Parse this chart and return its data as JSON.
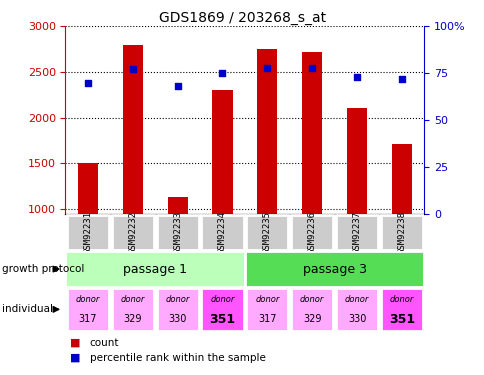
{
  "title": "GDS1869 / 203268_s_at",
  "samples": [
    "GSM92231",
    "GSM92232",
    "GSM92233",
    "GSM92234",
    "GSM92235",
    "GSM92236",
    "GSM92237",
    "GSM92238"
  ],
  "counts": [
    1500,
    2800,
    1130,
    2300,
    2750,
    2720,
    2110,
    1710
  ],
  "percentile_ranks": [
    70,
    77,
    68,
    75,
    78,
    78,
    73,
    72
  ],
  "ylim_left": [
    950,
    3000
  ],
  "ylim_right": [
    0,
    100
  ],
  "yticks_left": [
    1000,
    1500,
    2000,
    2500,
    3000
  ],
  "yticks_right": [
    0,
    25,
    50,
    75,
    100
  ],
  "bar_color": "#cc0000",
  "dot_color": "#0000cc",
  "passage1_color": "#bbffbb",
  "passage3_color": "#55dd55",
  "donor_light_color": "#ffaaff",
  "donor_bold_color": "#ff55ff",
  "bold_donors": [
    3,
    7
  ],
  "donors": [
    "317",
    "329",
    "330",
    "351",
    "317",
    "329",
    "330",
    "351"
  ],
  "growth_protocol_label": "growth protocol",
  "individual_label": "individual",
  "legend_count": "count",
  "legend_pct": "percentile rank within the sample",
  "sample_box_color": "#cccccc"
}
